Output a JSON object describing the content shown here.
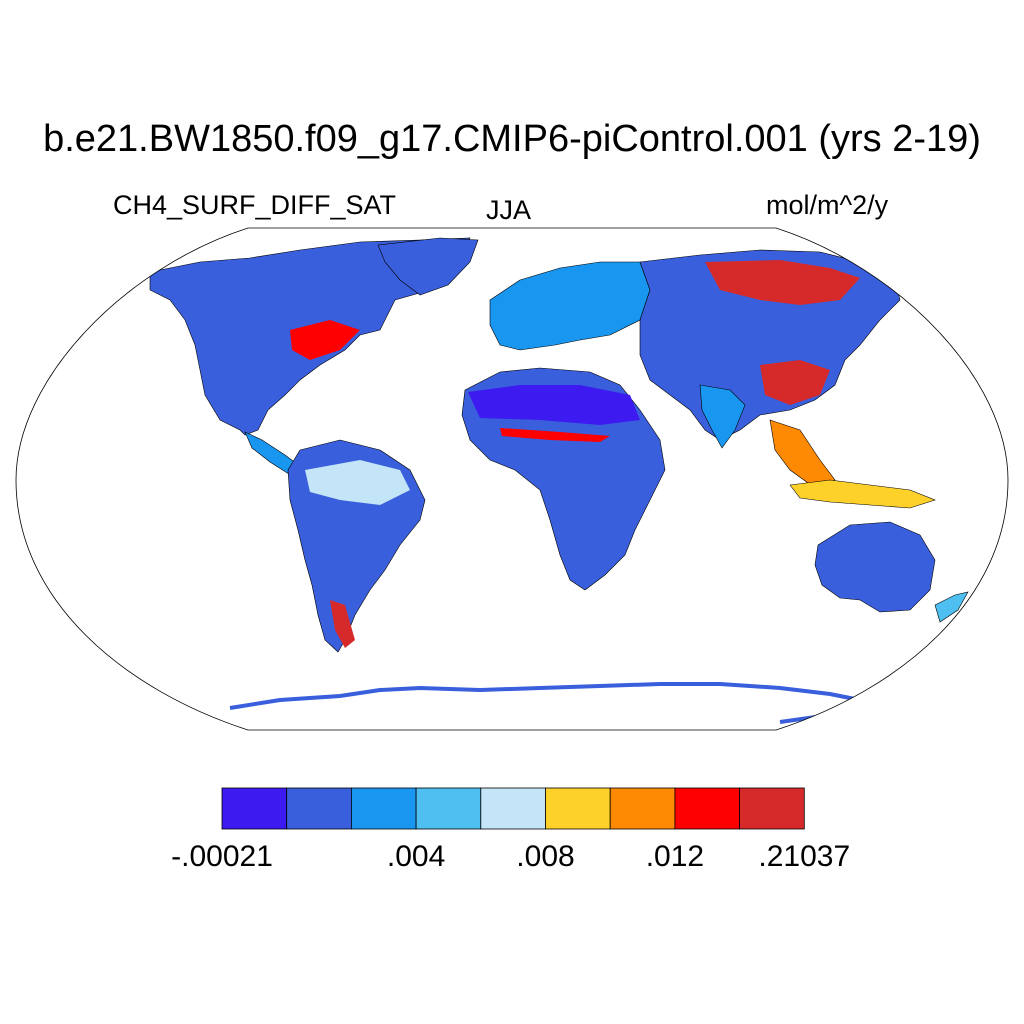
{
  "title": "b.e21.BW1850.f09_g17.CMIP6-piControl.001 (yrs 2-19)",
  "variable": "CH4_SURF_DIFF_SAT",
  "season": "JJA",
  "units": "mol/m^2/y",
  "projection": "Robinson",
  "colors": {
    "ocean": "#ffffff",
    "coastline": "#000000"
  },
  "colorbar": {
    "colors": [
      "#3c1af0",
      "#3a5fdc",
      "#1996f0",
      "#4fbef0",
      "#c4e5f7",
      "#fdd12a",
      "#fe8902",
      "#fe0000",
      "#d62a2a"
    ],
    "labels": [
      {
        "text": "-.00021",
        "after_box": 0
      },
      {
        "text": ".004",
        "after_box": 3
      },
      {
        "text": ".008",
        "after_box": 5
      },
      {
        "text": ".012",
        "after_box": 7
      },
      {
        "text": ".21037",
        "after_box": 9
      }
    ]
  }
}
